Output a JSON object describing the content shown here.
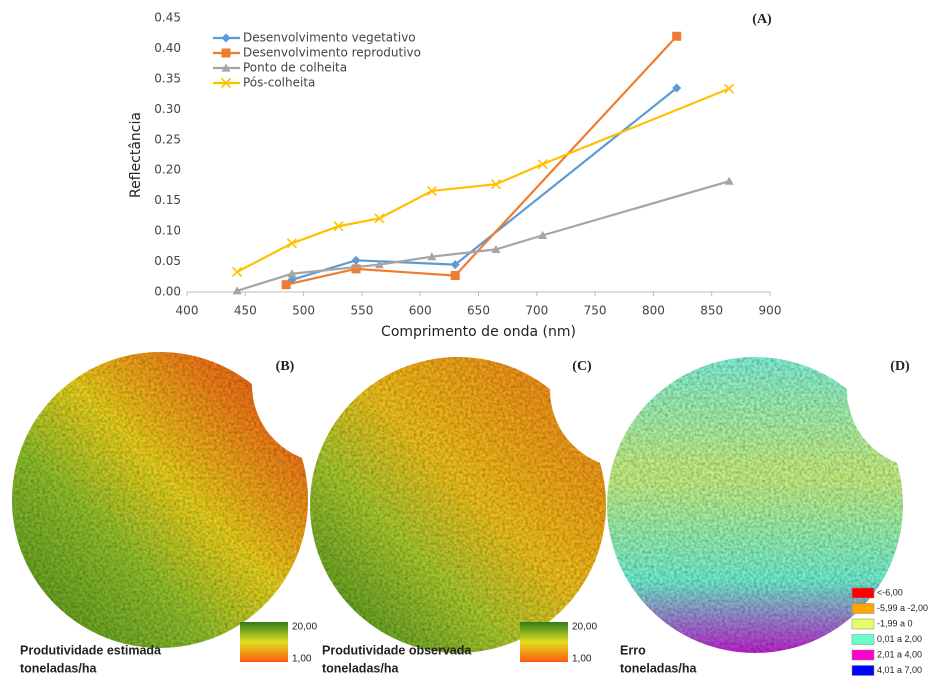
{
  "chart_data": {
    "type": "line",
    "panel_label": "(A)",
    "x_label": "Comprimento de onda (nm)",
    "y_label": "Reflectância",
    "xlim": [
      400,
      900
    ],
    "xticks": [
      400,
      450,
      500,
      550,
      600,
      650,
      700,
      750,
      800,
      850,
      900
    ],
    "ylim": [
      0,
      0.45
    ],
    "yticks": [
      {
        "value": 0,
        "label": "0.00"
      },
      {
        "value": 0.05,
        "label": "0.05"
      },
      {
        "value": 0.1,
        "label": "0.10"
      },
      {
        "value": 0.15,
        "label": "0.15"
      },
      {
        "value": 0.2,
        "label": "0.20"
      },
      {
        "value": 0.25,
        "label": "0.25"
      },
      {
        "value": 0.3,
        "label": "0.30"
      },
      {
        "value": 0.35,
        "label": "0.35"
      },
      {
        "value": 0.4,
        "label": "0.40"
      },
      {
        "value": 0.45,
        "label": "0.45"
      }
    ],
    "grid": false,
    "legend": "upper left",
    "series": [
      {
        "name": "Desenvolvimento vegetativo",
        "color": "#5b9bd5",
        "marker": "diamond",
        "x": [
          490,
          545,
          630,
          820
        ],
        "values": [
          0.02,
          0.052,
          0.045,
          0.335
        ]
      },
      {
        "name": "Desenvolvimento reprodutivo",
        "color": "#ed7d31",
        "marker": "square",
        "x": [
          485,
          545,
          630,
          820
        ],
        "values": [
          0.012,
          0.038,
          0.027,
          0.42
        ]
      },
      {
        "name": "Ponto de colheita",
        "color": "#a5a5a5",
        "marker": "triangle",
        "x": [
          443,
          490,
          565,
          610,
          665,
          705,
          865
        ],
        "values": [
          0.002,
          0.03,
          0.045,
          0.058,
          0.07,
          0.093,
          0.182
        ]
      },
      {
        "name": "Pós-colheita",
        "color": "#ffc000",
        "marker": "x",
        "x": [
          443,
          490,
          530,
          565,
          610,
          665,
          705,
          865
        ],
        "values": [
          0.033,
          0.08,
          0.108,
          0.121,
          0.166,
          0.177,
          0.21,
          0.334
        ]
      }
    ]
  },
  "panels": [
    {
      "label": "(B)",
      "caption": "Produtividade estimada",
      "unit": "toneladas/ha",
      "legend_max": "20,00",
      "legend_min": "1,00"
    },
    {
      "label": "(C)",
      "caption": "Produtividade observada",
      "unit": "toneladas/ha",
      "legend_max": "20,00",
      "legend_min": "1,00"
    },
    {
      "label": "(D)",
      "caption": "Erro",
      "unit": "toneladas/ha",
      "legend": [
        {
          "label": "<-6,00",
          "color": "#ff0000"
        },
        {
          "label": "-5,99 a -2,00",
          "color": "#ffa500"
        },
        {
          "label": "-1,99 a 0",
          "color": "#e6ff66"
        },
        {
          "label": "0,01 a 2,00",
          "color": "#66ffcc"
        },
        {
          "label": "2,01 a 4,00",
          "color": "#ff00cc"
        },
        {
          "label": "4,01 a 7,00",
          "color": "#0000ff"
        }
      ]
    }
  ]
}
